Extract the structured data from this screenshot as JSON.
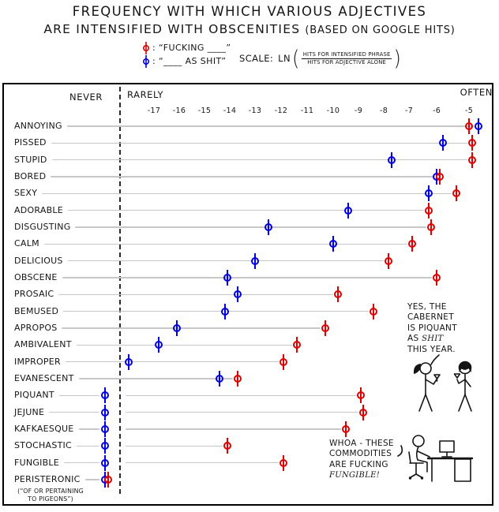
{
  "title": {
    "line1": "FREQUENCY WITH WHICH VARIOUS ADJECTIVES",
    "line2": "ARE INTENSIFIED WITH OBSCENITIES",
    "line2_paren": "(BASED ON GOOGLE HITS)"
  },
  "legend": {
    "fucking_label": ": “FUCKING ____”",
    "as_shit_label": ": “____ AS SHIT”",
    "scale_prefix": "SCALE:",
    "scale_fn": "LN",
    "scale_numerator": "HITS FOR INTENSIFIED PHRASE",
    "scale_denominator": "HITS FOR ADJECTIVE ALONE"
  },
  "axis": {
    "never": "NEVER",
    "rarely": "RARELY",
    "often": "OFTEN",
    "ticks": [
      -17,
      -16,
      -15,
      -14,
      -13,
      -12,
      -11,
      -10,
      -9,
      -8,
      -7,
      -6,
      -5
    ]
  },
  "chart_data": {
    "type": "scatter",
    "title": "Frequency with which various adjectives are intensified with obscenities (based on Google hits)",
    "xlabel": "LN(hits for intensified phrase / hits for adjective alone)",
    "xlim": [
      -18.5,
      -4.3
    ],
    "x_ticks": [
      -17,
      -16,
      -15,
      -14,
      -13,
      -12,
      -11,
      -10,
      -9,
      -8,
      -7,
      -6,
      -5
    ],
    "zone_labels": {
      "left_of_axis": "NEVER",
      "axis_left": "RARELY",
      "axis_right": "OFTEN"
    },
    "categories": [
      "ANNOYING",
      "PISSED",
      "STUPID",
      "BORED",
      "SEXY",
      "ADORABLE",
      "DISGUSTING",
      "CALM",
      "DELICIOUS",
      "OBSCENE",
      "PROSAIC",
      "BEMUSED",
      "APROPOS",
      "AMBIVALENT",
      "IMPROPER",
      "EVANESCENT",
      "PIQUANT",
      "JEJUNE",
      "KAFKAESQUE",
      "STOCHASTIC",
      "FUNGIBLE",
      "PERISTERONIC"
    ],
    "series": [
      {
        "name": "FUCKING ____",
        "color": "#dd0000",
        "values": [
          -5.0,
          -4.9,
          -4.9,
          -5.9,
          -5.4,
          -6.3,
          -6.2,
          -6.9,
          -7.8,
          -6.0,
          -9.8,
          -8.4,
          -10.3,
          -11.4,
          -11.9,
          -13.7,
          -8.9,
          -8.8,
          -9.5,
          -14.1,
          -11.9,
          "never"
        ]
      },
      {
        "name": "____ AS SHIT",
        "color": "#0000dd",
        "values": [
          -4.7,
          -5.8,
          -7.7,
          -6.0,
          -6.3,
          -9.4,
          -12.5,
          -10.0,
          -13.0,
          -14.1,
          -13.7,
          -14.2,
          -16.1,
          -16.8,
          -18.0,
          -14.4,
          "never",
          "never",
          "never",
          "never",
          "never",
          "never"
        ]
      }
    ],
    "footnote_for": "PERISTERONIC"
  },
  "footnote": {
    "line1": "(“OF OR PERTAINING",
    "line2": "TO PIGEONS”)"
  },
  "annotations": {
    "cabernet": {
      "lines": [
        [
          {
            "t": "YES, THE",
            "em": false
          }
        ],
        [
          {
            "t": "CABERNET",
            "em": false
          }
        ],
        [
          {
            "t": "IS PIQUANT",
            "em": false
          }
        ],
        [
          {
            "t": "AS ",
            "em": false
          },
          {
            "t": "SHIT",
            "em": true
          }
        ],
        [
          {
            "t": "THIS YEAR.",
            "em": false
          }
        ]
      ]
    },
    "fungible": {
      "lines": [
        [
          {
            "t": "WHOA - THESE",
            "em": false
          }
        ],
        [
          {
            "t": "COMMODITIES",
            "em": false
          }
        ],
        [
          {
            "t": "ARE FUCKING",
            "em": false
          }
        ],
        [
          {
            "t": "FUNGIBLE!",
            "em": true
          }
        ]
      ]
    }
  },
  "colors": {
    "fucking": "#dd0000",
    "as_shit": "#0000dd",
    "row_line": "#c7c7c7",
    "ink": "#151515"
  }
}
